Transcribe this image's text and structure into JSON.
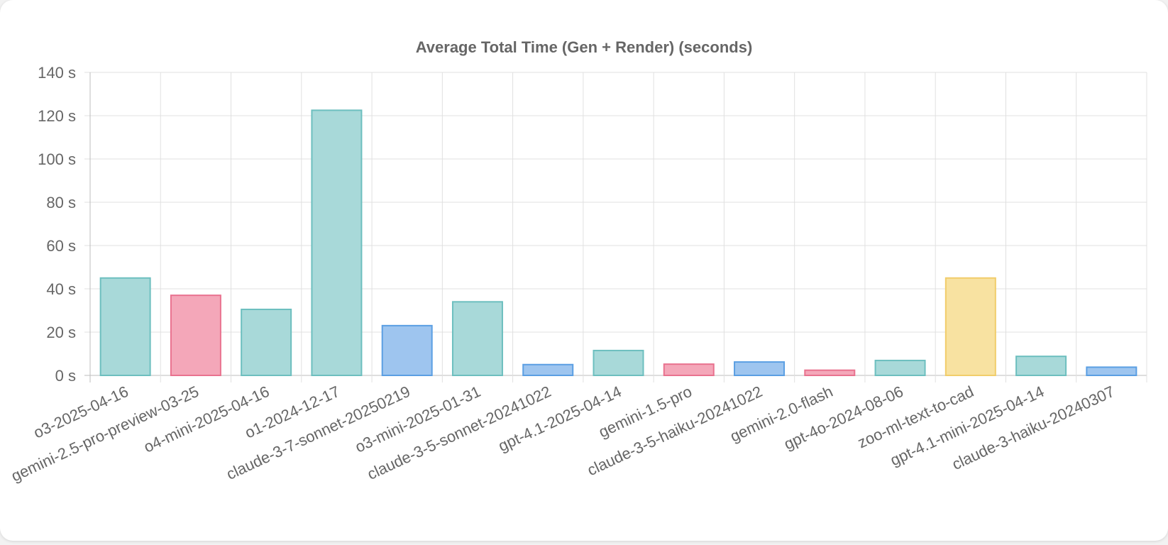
{
  "chart_data": {
    "type": "bar",
    "title": "Average Total Time (Gen + Render) (seconds)",
    "xlabel": "",
    "ylabel": "",
    "y_unit_suffix": " s",
    "ylim": [
      0,
      140
    ],
    "yticks": [
      0,
      20,
      40,
      60,
      80,
      100,
      120,
      140
    ],
    "grid": true,
    "legend": "none",
    "categories": [
      "o3-2025-04-16",
      "gemini-2.5-pro-preview-03-25",
      "o4-mini-2025-04-16",
      "o1-2024-12-17",
      "claude-3-7-sonnet-20250219",
      "o3-mini-2025-01-31",
      "claude-3-5-sonnet-20241022",
      "gpt-4.1-2025-04-14",
      "gemini-1.5-pro",
      "claude-3-5-haiku-20241022",
      "gemini-2.0-flash",
      "gpt-4o-2024-08-06",
      "zoo-ml-text-to-cad",
      "gpt-4.1-mini-2025-04-14",
      "claude-3-haiku-20240307"
    ],
    "values": [
      45,
      37,
      30.5,
      122.5,
      23,
      34,
      5,
      11.5,
      5.2,
      6.2,
      2.4,
      6.9,
      45,
      8.8,
      3.8
    ],
    "bar_fills": [
      "#a8d9d9",
      "#f4a7b9",
      "#a8d9d9",
      "#a8d9d9",
      "#9ec5ef",
      "#a8d9d9",
      "#9ec5ef",
      "#a8d9d9",
      "#f4a7b9",
      "#9ec5ef",
      "#f4a7b9",
      "#a8d9d9",
      "#f8e2a1",
      "#a8d9d9",
      "#9ec5ef"
    ],
    "bar_strokes": [
      "#6dbfbf",
      "#e9728f",
      "#6dbfbf",
      "#6dbfbf",
      "#5b9fe3",
      "#6dbfbf",
      "#5b9fe3",
      "#6dbfbf",
      "#e9728f",
      "#5b9fe3",
      "#e9728f",
      "#6dbfbf",
      "#f1cd6a",
      "#6dbfbf",
      "#5b9fe3"
    ]
  }
}
